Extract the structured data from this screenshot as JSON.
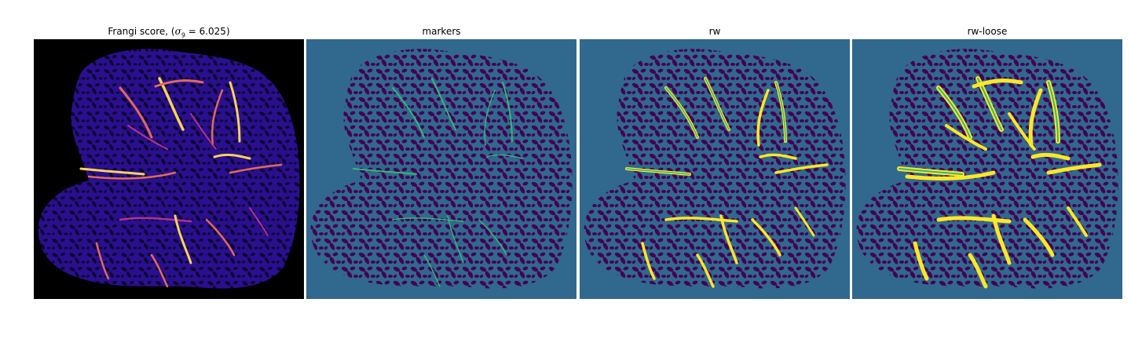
{
  "figure": {
    "panels": [
      {
        "key": "frangi",
        "title_prefix": "Frangi score, (",
        "title_math": "σ",
        "title_sub": "9",
        "title_suffix": " = 6.025)",
        "colormap": "plasma"
      },
      {
        "key": "markers",
        "title": "markers",
        "colormap": "viridis"
      },
      {
        "key": "rw",
        "title": "rw",
        "colormap": "viridis"
      },
      {
        "key": "rw_loose",
        "title": "rw-loose",
        "colormap": "viridis"
      }
    ],
    "colors": {
      "frangi_background": "#000000",
      "frangi_tissue": "#2a0f8f",
      "frangi_tissue_alt": "#3d11a0",
      "frangi_holes": "#0c0630",
      "frangi_vessel_low": "#b3318c",
      "frangi_vessel_mid": "#e06a5a",
      "frangi_vessel_high": "#fbd25a",
      "viridis_background": "#31688e",
      "viridis_tissue": "#440154",
      "viridis_marker": "#35b779",
      "viridis_high": "#fde725"
    }
  }
}
